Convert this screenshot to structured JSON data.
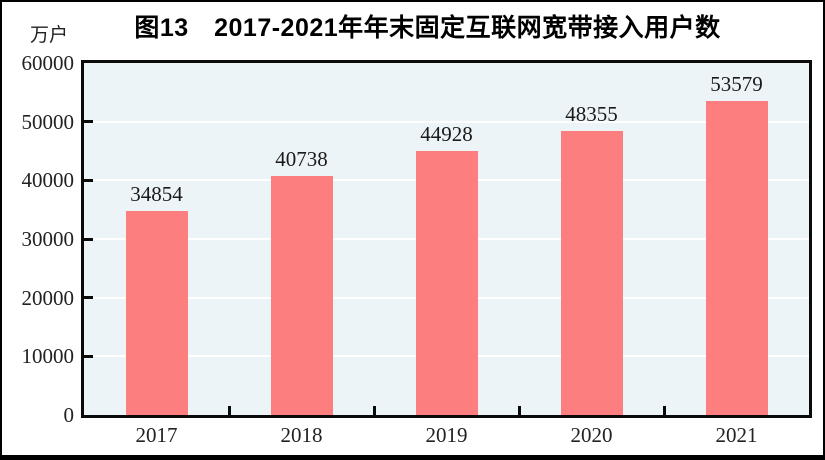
{
  "figure": {
    "title": "图13　2017-2021年年末固定互联网宽带接入用户数",
    "unit_label": "万户"
  },
  "chart_data": {
    "type": "bar",
    "title": "图13　2017-2021年年末固定互联网宽带接入用户数",
    "ylabel_unit": "万户",
    "categories": [
      "2017",
      "2018",
      "2019",
      "2020",
      "2021"
    ],
    "values": [
      34854,
      40738,
      44928,
      48355,
      53579
    ],
    "value_labels": [
      "34854",
      "40738",
      "44928",
      "48355",
      "53579"
    ],
    "ylim": [
      0,
      60000
    ],
    "ytick_interval": 10000,
    "yticks": [
      0,
      10000,
      20000,
      30000,
      40000,
      50000,
      60000
    ],
    "ytick_labels": [
      "0",
      "10000",
      "20000",
      "30000",
      "40000",
      "50000",
      "60000"
    ],
    "grid": true,
    "legend": "none",
    "colors": {
      "bar_fill": "#FC7E7E",
      "plot_background": "#EDF4F8",
      "gridline": "#FFFFFF",
      "plot_border": "#0A0A0A",
      "text": "#1A1A1A",
      "page_background": "#FFFFFF",
      "outer_frame": "#000000"
    }
  }
}
